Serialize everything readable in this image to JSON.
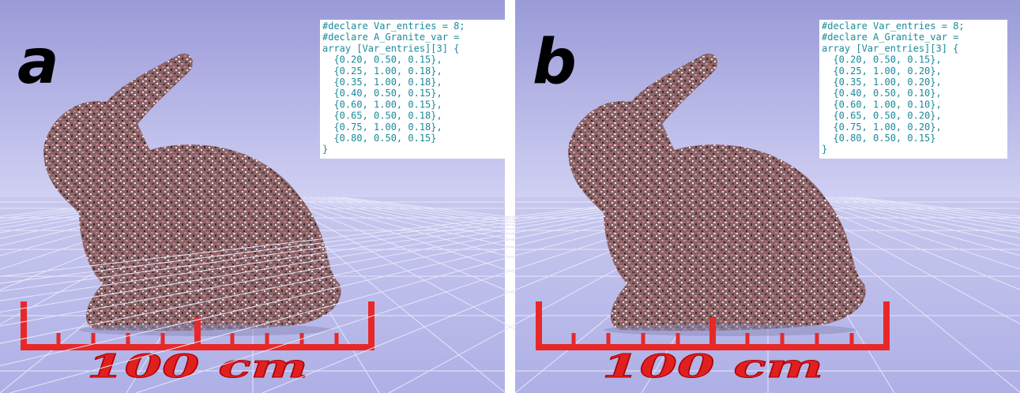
{
  "panels": [
    {
      "label": "a",
      "code": [
        "#declare Var_entries = 8;",
        "#declare A_Granite_var =",
        "array [Var_entries][3] {",
        "  {0.20, 0.50, 0.15},",
        "  {0.25, 1.00, 0.18},",
        "  {0.35, 1.00, 0.18},",
        "  {0.40, 0.50, 0.15},",
        "  {0.60, 1.00, 0.15},",
        "  {0.65, 0.50, 0.18},",
        "  {0.75, 1.00, 0.18},",
        "  {0.80, 0.50, 0.15}",
        "}"
      ]
    },
    {
      "label": "b",
      "code": [
        "#declare Var_entries = 8;",
        "#declare A_Granite_var =",
        "array [Var_entries][3] {",
        "  {0.20, 0.50, 0.15},",
        "  {0.25, 1.00, 0.20},",
        "  {0.35, 1.00, 0.20},",
        "  {0.40, 0.50, 0.10},",
        "  {0.60, 1.00, 0.10},",
        "  {0.65, 0.50, 0.20},",
        "  {0.75, 1.00, 0.20},",
        "  {0.80, 0.50, 0.15}",
        "}"
      ]
    }
  ],
  "scale_label": "100 cm"
}
